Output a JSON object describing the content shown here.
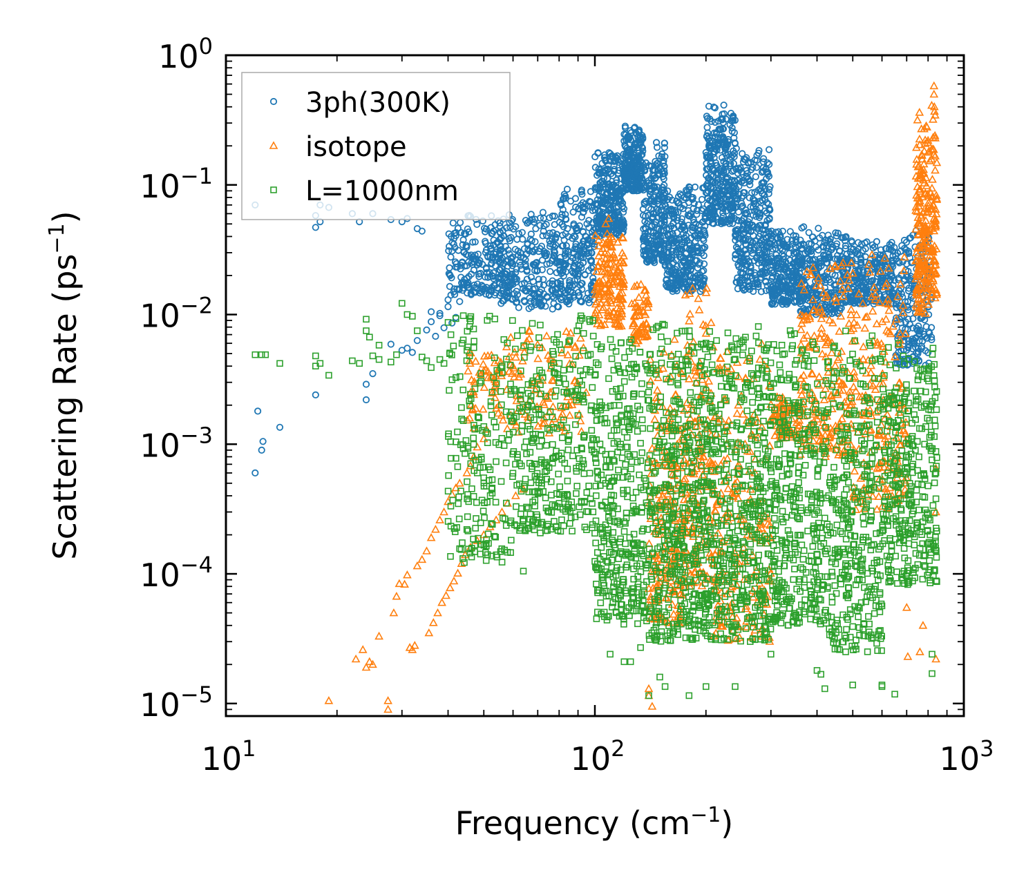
{
  "chart_data": {
    "type": "scatter",
    "xscale": "log",
    "yscale": "log",
    "xlim": [
      10,
      1000
    ],
    "ylim": [
      8e-06,
      1
    ],
    "xlabel": "Frequency (cm$^{-1}$)",
    "xlabel_parts": [
      "Frequency (cm",
      "−1",
      ")"
    ],
    "ylabel": "Scattering Rate (ps$^{-1}$)",
    "ylabel_parts": [
      "Scattering Rate (ps",
      "−1",
      ")"
    ],
    "xticks": [
      {
        "value": 10,
        "base": "10",
        "exp": "1"
      },
      {
        "value": 100,
        "base": "10",
        "exp": "2"
      },
      {
        "value": 1000,
        "base": "10",
        "exp": "3"
      }
    ],
    "yticks": [
      {
        "value": 1,
        "base": "10",
        "exp": "0"
      },
      {
        "value": 0.1,
        "base": "10",
        "exp": "−1"
      },
      {
        "value": 0.01,
        "base": "10",
        "exp": "−2"
      },
      {
        "value": 0.001,
        "base": "10",
        "exp": "−3"
      },
      {
        "value": 0.0001,
        "base": "10",
        "exp": "−4"
      },
      {
        "value": 1e-05,
        "base": "10",
        "exp": "−5"
      }
    ],
    "legend_position": "top-left",
    "series": [
      {
        "name": "3ph(300K)",
        "marker": "circle",
        "color": "#1f77b4",
        "points": [
          [
            12,
            0.0006
          ],
          [
            12.2,
            0.0018
          ],
          [
            12.5,
            0.0009
          ],
          [
            12.6,
            0.00105
          ],
          [
            14,
            0.00135
          ],
          [
            12,
            0.07
          ],
          [
            17.5,
            0.0024
          ],
          [
            17.5,
            0.047
          ],
          [
            17.5,
            0.058
          ],
          [
            18,
            0.052
          ],
          [
            18,
            0.07
          ],
          [
            19,
            0.067
          ],
          [
            22,
            0.06
          ],
          [
            23,
            0.052
          ],
          [
            25,
            0.06
          ],
          [
            28,
            0.054
          ],
          [
            30,
            0.052
          ],
          [
            31,
            0.055
          ],
          [
            33,
            0.046
          ],
          [
            34,
            0.044
          ],
          [
            24,
            0.0022
          ],
          [
            24,
            0.0029
          ],
          [
            25,
            0.0035
          ],
          [
            28,
            0.0059
          ],
          [
            30,
            0.0053
          ],
          [
            31,
            0.0055
          ],
          [
            32,
            0.0051
          ],
          [
            33,
            0.0063
          ],
          [
            35,
            0.0076
          ],
          [
            36,
            0.0088
          ],
          [
            38,
            0.0102
          ],
          [
            40,
            0.0115
          ],
          [
            42,
            0.0095
          ],
          [
            43,
            0.0126
          ],
          [
            37,
            0.0068
          ],
          [
            39,
            0.0079
          ],
          [
            41,
            0.0086
          ],
          [
            44,
            0.016
          ],
          [
            36,
            0.0105
          ],
          [
            38,
            0.0098
          ],
          [
            40,
            0.013
          ],
          [
            45,
            0.019
          ],
          [
            47,
            0.022
          ]
        ],
        "bands": [
          {
            "x": [
              40,
              60
            ],
            "y": [
              0.014,
              0.06
            ],
            "n": 220
          },
          {
            "x": [
              55,
              80
            ],
            "y": [
              0.011,
              0.062
            ],
            "n": 240
          },
          {
            "x": [
              80,
              100
            ],
            "y": [
              0.012,
              0.095
            ],
            "n": 220
          },
          {
            "x": [
              100,
              120
            ],
            "y": [
              0.04,
              0.18
            ],
            "n": 260
          },
          {
            "x": [
              120,
              135
            ],
            "y": [
              0.09,
              0.29
            ],
            "n": 220
          },
          {
            "x": [
              135,
              155
            ],
            "y": [
              0.025,
              0.22
            ],
            "n": 220
          },
          {
            "x": [
              155,
              200
            ],
            "y": [
              0.015,
              0.1
            ],
            "n": 320
          },
          {
            "x": [
              200,
              240
            ],
            "y": [
              0.05,
              0.42
            ],
            "n": 300
          },
          {
            "x": [
              240,
              300
            ],
            "y": [
              0.015,
              0.2
            ],
            "n": 320
          },
          {
            "x": [
              300,
              360
            ],
            "y": [
              0.012,
              0.045
            ],
            "n": 220
          },
          {
            "x": [
              360,
              480
            ],
            "y": [
              0.01,
              0.048
            ],
            "n": 280
          },
          {
            "x": [
              480,
              650
            ],
            "y": [
              0.012,
              0.038
            ],
            "n": 260
          },
          {
            "x": [
              650,
              820
            ],
            "y": [
              0.004,
              0.048
            ],
            "n": 220
          }
        ]
      },
      {
        "name": "isotope",
        "marker": "triangle",
        "color": "#ff7f0e",
        "points": [
          [
            19,
            1.05e-05
          ],
          [
            22.5,
            2.2e-05
          ],
          [
            23.5,
            2.6e-05
          ],
          [
            24.5,
            2.1e-05
          ],
          [
            24,
            1.9e-05
          ],
          [
            25,
            2e-05
          ],
          [
            26,
            3.3e-05
          ],
          [
            27.5,
            9e-06
          ],
          [
            27.5,
            1.05e-05
          ],
          [
            28.5,
            5e-05
          ],
          [
            29,
            6.7e-05
          ],
          [
            29.5,
            8.4e-05
          ],
          [
            30.5,
            8.3e-05
          ],
          [
            31,
            9.8e-05
          ],
          [
            31.5,
            2.7e-05
          ],
          [
            32,
            2.6e-05
          ],
          [
            32.5,
            2.8e-05
          ],
          [
            33,
            0.000115
          ],
          [
            34,
            0.000129
          ],
          [
            35,
            0.00015
          ],
          [
            36,
            0.00019
          ],
          [
            37,
            0.00022
          ],
          [
            38,
            0.00026
          ],
          [
            39,
            0.0003
          ],
          [
            40,
            0.00036
          ],
          [
            41,
            0.00041
          ],
          [
            42,
            0.00046
          ],
          [
            43,
            0.0005
          ],
          [
            35.5,
            3.5e-05
          ],
          [
            36.5,
            4.2e-05
          ],
          [
            37.5,
            5e-05
          ],
          [
            38.5,
            6e-05
          ],
          [
            39.5,
            6.8e-05
          ],
          [
            40.5,
            7.8e-05
          ],
          [
            41.5,
            8.8e-05
          ],
          [
            42.5,
            0.000101
          ],
          [
            43.5,
            0.00012
          ],
          [
            44.5,
            0.00014
          ],
          [
            45,
            0.0006
          ],
          [
            46,
            0.00068
          ],
          [
            47,
            0.0008
          ],
          [
            48,
            0.00095
          ],
          [
            50,
            0.0011
          ],
          [
            46,
            0.00016
          ],
          [
            48,
            0.00018
          ],
          [
            50,
            0.0002
          ],
          [
            52,
            0.00023
          ],
          [
            54,
            0.00026
          ],
          [
            56,
            0.0003
          ],
          [
            58,
            0.00035
          ],
          [
            61,
            0.0004
          ],
          [
            64,
            0.00045
          ],
          [
            107,
            0.05
          ],
          [
            108,
            0.042
          ],
          [
            109,
            0.055
          ],
          [
            135,
            0.012
          ],
          [
            140,
            1.15e-05
          ],
          [
            140,
            1.3e-05
          ],
          [
            143,
            9.5e-06
          ],
          [
            830,
            0.58
          ],
          [
            830,
            0.5
          ],
          [
            832,
            0.4
          ],
          [
            825,
            0.32
          ],
          [
            835,
            0.24
          ],
          [
            840,
            0.00065
          ],
          [
            840,
            0.0003
          ],
          [
            840,
            2.2e-05
          ],
          [
            705,
            2.3e-05
          ],
          [
            700,
            5.5e-05
          ],
          [
            760,
            2.5e-05
          ],
          [
            775,
            4e-05
          ]
        ],
        "bands": [
          {
            "x": [
              45,
              95
            ],
            "y": [
              0.0012,
              0.008
            ],
            "n": 160
          },
          {
            "x": [
              100,
              120
            ],
            "y": [
              0.008,
              0.045
            ],
            "n": 160
          },
          {
            "x": [
              125,
              140
            ],
            "y": [
              0.006,
              0.018
            ],
            "n": 60
          },
          {
            "x": [
              140,
              175
            ],
            "y": [
              4e-05,
              0.007
            ],
            "n": 220
          },
          {
            "x": [
              175,
              210
            ],
            "y": [
              8e-05,
              0.018
            ],
            "n": 160
          },
          {
            "x": [
              210,
              300
            ],
            "y": [
              3e-05,
              0.006
            ],
            "n": 220
          },
          {
            "x": [
              300,
              360
            ],
            "y": [
              0.0011,
              0.0024
            ],
            "n": 80
          },
          {
            "x": [
              360,
              500
            ],
            "y": [
              0.0008,
              0.03
            ],
            "n": 200
          },
          {
            "x": [
              500,
              700
            ],
            "y": [
              0.0003,
              0.03
            ],
            "n": 200
          },
          {
            "x": [
              740,
              845
            ],
            "y": [
              0.01,
              0.42
            ],
            "n": 260
          }
        ]
      },
      {
        "name": "L=1000nm",
        "marker": "square",
        "color": "#2ca02c",
        "points": [
          [
            12,
            0.0049
          ],
          [
            12.5,
            0.0049
          ],
          [
            12.8,
            0.0049
          ],
          [
            14,
            0.0042
          ],
          [
            17.5,
            0.0048
          ],
          [
            17.5,
            0.004
          ],
          [
            18,
            0.0042
          ],
          [
            19,
            0.0034
          ],
          [
            22,
            0.0044
          ],
          [
            23,
            0.0042
          ],
          [
            24,
            0.0092
          ],
          [
            24,
            0.0075
          ],
          [
            24.5,
            0.0067
          ],
          [
            25,
            0.0048
          ],
          [
            26,
            0.0058
          ],
          [
            26,
            0.0045
          ],
          [
            28,
            0.0043
          ],
          [
            29,
            0.0049
          ],
          [
            30,
            0.0122
          ],
          [
            31,
            0.01
          ],
          [
            32,
            0.0097
          ],
          [
            33,
            0.0075
          ],
          [
            34,
            0.0047
          ],
          [
            35,
            0.0044
          ],
          [
            36,
            0.0039
          ],
          [
            38,
            0.0045
          ],
          [
            39,
            0.0042
          ],
          [
            40,
            0.0087
          ],
          [
            42,
            0.0093
          ],
          [
            44,
            0.0098
          ],
          [
            45,
            0.0053
          ],
          [
            47,
            0.0014
          ],
          [
            48,
            0.0006
          ],
          [
            50,
            0.00055
          ],
          [
            64,
            0.000105
          ],
          [
            63,
            0.00029
          ],
          [
            80,
            0.00035
          ],
          [
            75,
            0.0003
          ],
          [
            110,
            2.4e-05
          ],
          [
            120,
            2.1e-05
          ],
          [
            125,
            2.1e-05
          ],
          [
            133,
            2.7e-05
          ],
          [
            140,
            1.15e-05
          ],
          [
            150,
            1.6e-05
          ],
          [
            155,
            1.35e-05
          ],
          [
            180,
            1.15e-05
          ],
          [
            200,
            1.35e-05
          ],
          [
            240,
            1.35e-05
          ],
          [
            300,
            2.4e-05
          ],
          [
            400,
            1.8e-05
          ],
          [
            410,
            1.68e-05
          ],
          [
            420,
            1.3e-05
          ],
          [
            500,
            1.39e-05
          ],
          [
            550,
            3.3e-05
          ],
          [
            600,
            1.35e-05
          ],
          [
            600,
            1.39e-05
          ],
          [
            650,
            1.18e-05
          ],
          [
            820,
            1.7e-05
          ],
          [
            820,
            2.4e-05
          ]
        ],
        "bands": [
          {
            "x": [
              40,
              60
            ],
            "y": [
              0.00012,
              0.01
            ],
            "n": 200
          },
          {
            "x": [
              60,
              100
            ],
            "y": [
              0.0002,
              0.01
            ],
            "n": 320
          },
          {
            "x": [
              100,
              140
            ],
            "y": [
              4e-05,
              0.008
            ],
            "n": 380
          },
          {
            "x": [
              140,
              200
            ],
            "y": [
              3e-05,
              0.009
            ],
            "n": 480
          },
          {
            "x": [
              200,
              300
            ],
            "y": [
              3e-05,
              0.009
            ],
            "n": 520
          },
          {
            "x": [
              300,
              420
            ],
            "y": [
              4e-05,
              0.008
            ],
            "n": 380
          },
          {
            "x": [
              420,
              600
            ],
            "y": [
              2.5e-05,
              0.008
            ],
            "n": 380
          },
          {
            "x": [
              600,
              845
            ],
            "y": [
              8e-05,
              0.006
            ],
            "n": 360
          }
        ]
      }
    ]
  }
}
